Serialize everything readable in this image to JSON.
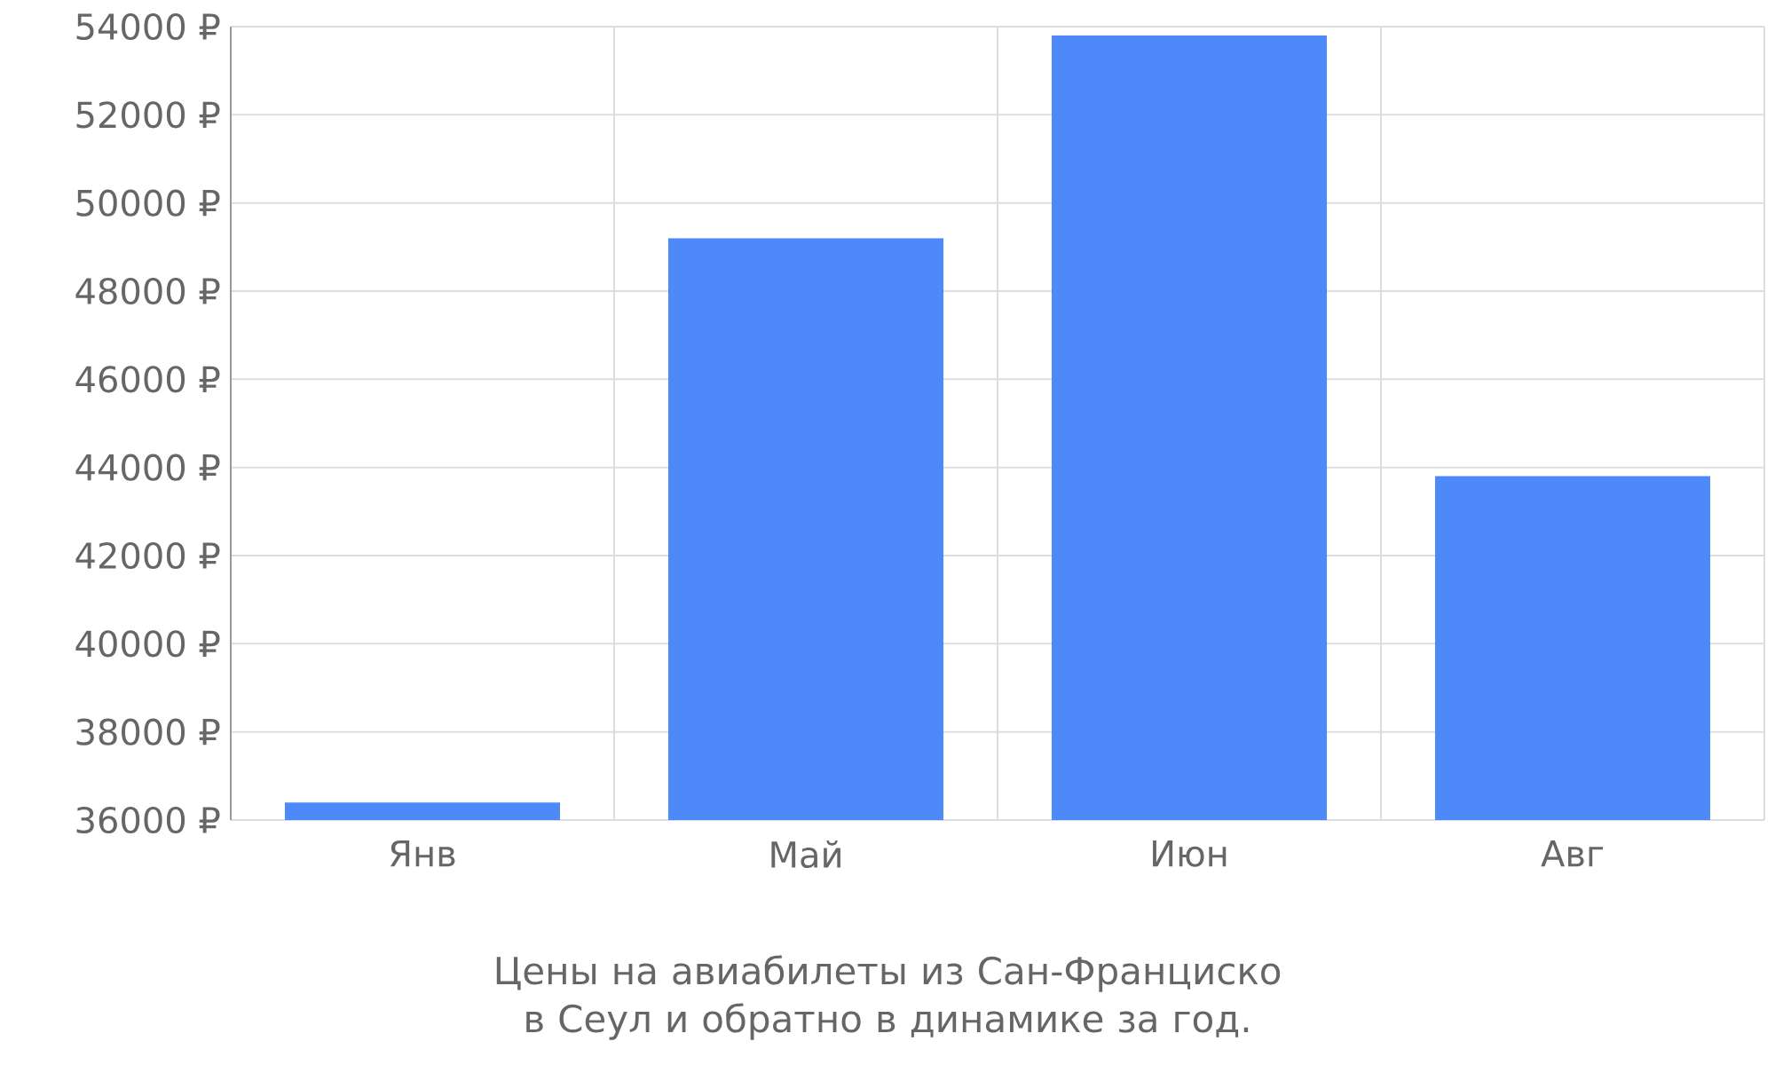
{
  "chart_data": {
    "type": "bar",
    "categories": [
      "Янв",
      "Май",
      "Июн",
      "Авг"
    ],
    "values": [
      36400,
      49200,
      53800,
      43800
    ],
    "color": "#4d89f9",
    "ylim": [
      36000,
      54000
    ],
    "yticks": [
      {
        "value": 36000,
        "label": "36000 ₽"
      },
      {
        "value": 38000,
        "label": "38000 ₽"
      },
      {
        "value": 40000,
        "label": "40000 ₽"
      },
      {
        "value": 42000,
        "label": "42000 ₽"
      },
      {
        "value": 44000,
        "label": "44000 ₽"
      },
      {
        "value": 46000,
        "label": "46000 ₽"
      },
      {
        "value": 48000,
        "label": "48000 ₽"
      },
      {
        "value": 50000,
        "label": "50000 ₽"
      },
      {
        "value": 52000,
        "label": "52000 ₽"
      },
      {
        "value": 54000,
        "label": "54000 ₽"
      }
    ],
    "grid": true,
    "annotations": [
      "Цены на авиабилеты из Сан-Франциско в Сеул и обратно в динамике за год."
    ]
  }
}
